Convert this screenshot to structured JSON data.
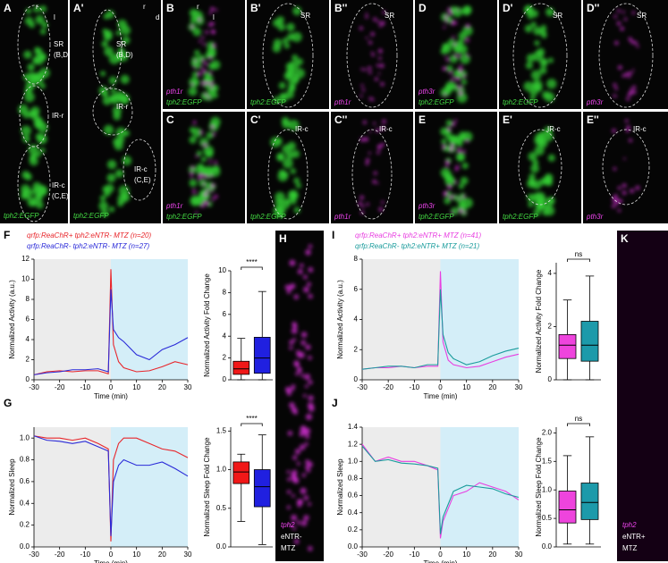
{
  "images": [
    {
      "label": "A",
      "texts": [
        "r",
        "l",
        "SR",
        "(B,D)",
        "IR-r",
        "IR-c",
        "(C,E)",
        "tph2:EGFP"
      ]
    },
    {
      "label": "A'",
      "texts": [
        "r",
        "d",
        "SR",
        "(B,D)",
        "IR-r",
        "IR-c",
        "(C,E)",
        "tph2:EGFP"
      ]
    },
    {
      "label": "B",
      "texts": [
        "r",
        "l",
        "pth1r",
        "tph2:EGFP"
      ]
    },
    {
      "label": "B'",
      "texts": [
        "SR",
        "tph2:EGFP"
      ]
    },
    {
      "label": "B''",
      "texts": [
        "SR",
        "pth1r"
      ]
    },
    {
      "label": "D",
      "texts": [
        "pth3r",
        "tph2:EGFP"
      ]
    },
    {
      "label": "D'",
      "texts": [
        "SR",
        "tph2:EGFP"
      ]
    },
    {
      "label": "D''",
      "texts": [
        "SR",
        "pth3r"
      ]
    },
    {
      "label": "C",
      "texts": [
        "pth1r",
        "tph2:EGFP"
      ]
    },
    {
      "label": "C'",
      "texts": [
        "IR-c",
        "tph2:EGFP"
      ]
    },
    {
      "label": "C''",
      "texts": [
        "IR-c",
        "pth1r"
      ]
    },
    {
      "label": "E",
      "texts": [
        "pth3r",
        "tph2:EGFP"
      ]
    },
    {
      "label": "E'",
      "texts": [
        "IR-c",
        "tph2:EGFP"
      ]
    },
    {
      "label": "E''",
      "texts": [
        "IR-c",
        "pth3r"
      ]
    },
    {
      "label": "H",
      "texts": [
        "tph2",
        "eNTR-",
        "MTZ"
      ]
    },
    {
      "label": "K",
      "texts": [
        "tph2",
        "eNTR+",
        "MTZ"
      ]
    }
  ],
  "chart_data": [
    {
      "type": "line",
      "label": "F",
      "ylabel": "Normalized Activity (a.u.)",
      "xlabel": "Time (min)",
      "x": [
        -30,
        -25,
        -20,
        -15,
        -10,
        -5,
        -1,
        0,
        1,
        3,
        5,
        10,
        15,
        20,
        25,
        30
      ],
      "series": [
        {
          "name": "qrfp:ReaChR+ tph2:eNTR- MTZ (n=20)",
          "color": "#e8262b",
          "values": [
            0.5,
            0.8,
            0.9,
            0.8,
            0.9,
            0.9,
            0.6,
            11,
            3.5,
            1.8,
            1.2,
            0.8,
            0.9,
            1.3,
            1.8,
            1.5
          ]
        },
        {
          "name": "qrfp:ReaChR- tph2:eNTR- MTZ (n=27)",
          "color": "#2a2ad8",
          "values": [
            0.5,
            0.7,
            0.8,
            1.0,
            1.0,
            1.1,
            0.8,
            9,
            5,
            4.2,
            3.8,
            2.5,
            2.0,
            3.0,
            3.5,
            4.2
          ]
        }
      ],
      "xlim": [
        -30,
        30
      ],
      "xticks": [
        -30,
        -20,
        -10,
        0,
        10,
        20,
        30
      ],
      "ylim": [
        0,
        12
      ],
      "yticks": [
        0,
        2,
        4,
        6,
        8,
        10,
        12
      ]
    },
    {
      "type": "box",
      "ylabel": "Normalized Activity Fold Change",
      "annotation": "****",
      "boxes": [
        {
          "color": "#f01818",
          "min": 0,
          "q1": 0.5,
          "median": 1.0,
          "q3": 1.7,
          "max": 3.8
        },
        {
          "color": "#2020e0",
          "min": 0,
          "q1": 0.6,
          "median": 2.0,
          "q3": 3.9,
          "max": 8.1
        }
      ],
      "ylim": [
        0,
        10
      ],
      "yticks": [
        0,
        2,
        4,
        6,
        8,
        10
      ]
    },
    {
      "type": "line",
      "label": "G",
      "ylabel": "Normalized Sleep",
      "xlabel": "Time (min)",
      "x": [
        -30,
        -25,
        -20,
        -15,
        -10,
        -5,
        -1,
        0,
        1,
        3,
        5,
        10,
        15,
        20,
        25,
        30
      ],
      "series": [
        {
          "color": "#e8262b",
          "values": [
            1.02,
            1.0,
            1.0,
            0.98,
            1.0,
            0.95,
            0.9,
            0.05,
            0.8,
            0.95,
            1.0,
            1.0,
            0.95,
            0.9,
            0.88,
            0.82
          ]
        },
        {
          "color": "#2a2ad8",
          "values": [
            1.02,
            0.98,
            0.97,
            0.95,
            0.97,
            0.92,
            0.88,
            0.1,
            0.6,
            0.75,
            0.8,
            0.75,
            0.75,
            0.78,
            0.72,
            0.65
          ]
        }
      ],
      "xlim": [
        -30,
        30
      ],
      "xticks": [
        -30,
        -20,
        -10,
        0,
        10,
        20,
        30
      ],
      "ylim": [
        0,
        1.1
      ],
      "yticks": [
        {
          "value": 0,
          "label": "0.0"
        },
        0.2,
        0.4,
        0.6,
        0.8,
        {
          "value": 1,
          "label": "1.0"
        }
      ]
    },
    {
      "type": "box",
      "ylabel": "Normalized Sleep Fold Change",
      "annotation": "****",
      "boxes": [
        {
          "color": "#f01818",
          "min": 0.33,
          "q1": 0.82,
          "median": 0.97,
          "q3": 1.1,
          "max": 1.2
        },
        {
          "color": "#2020e0",
          "min": 0.03,
          "q1": 0.52,
          "median": 0.78,
          "q3": 1.0,
          "max": 1.45
        }
      ],
      "ylim": [
        0,
        1.55
      ],
      "yticks": [
        {
          "value": 0,
          "label": "0.0"
        },
        0.5,
        {
          "value": 1,
          "label": "1.0"
        },
        1.5
      ]
    },
    {
      "type": "line",
      "label": "I",
      "ylabel": "Normalized Activity (a.u.)",
      "xlabel": "Time (min)",
      "x": [
        -30,
        -25,
        -20,
        -15,
        -10,
        -5,
        -1,
        0,
        1,
        3,
        5,
        10,
        15,
        20,
        25,
        30
      ],
      "series": [
        {
          "name": "qrfp:ReaChR+ tph2:eNTR+ MTZ (n=41)",
          "color": "#e83ee0",
          "values": [
            0.7,
            0.8,
            0.8,
            0.9,
            0.8,
            0.9,
            0.9,
            7.2,
            2.5,
            1.3,
            1.0,
            0.8,
            0.9,
            1.2,
            1.5,
            1.7
          ]
        },
        {
          "name": "qrfp:ReaChR- tph2:eNTR+ MTZ (n=21)",
          "color": "#1a9c9c",
          "values": [
            0.7,
            0.8,
            0.9,
            0.9,
            0.8,
            1.0,
            1.0,
            6.0,
            3.0,
            1.8,
            1.4,
            1.0,
            1.2,
            1.6,
            1.9,
            2.1
          ]
        }
      ],
      "xlim": [
        -30,
        30
      ],
      "xticks": [
        -30,
        -20,
        -10,
        0,
        10,
        20,
        30
      ],
      "ylim": [
        0,
        8
      ],
      "yticks": [
        0,
        2,
        4,
        6,
        8
      ]
    },
    {
      "type": "box",
      "ylabel": "Normalized Activity Fold Change",
      "annotation": "ns",
      "boxes": [
        {
          "color": "#ee44dd",
          "min": 0,
          "q1": 0.8,
          "median": 1.3,
          "q3": 1.7,
          "max": 3.0
        },
        {
          "color": "#1d9aaa",
          "min": 0,
          "q1": 0.7,
          "median": 1.3,
          "q3": 2.2,
          "max": 3.9
        }
      ],
      "ylim": [
        0,
        4.4
      ],
      "yticks": [
        0,
        2,
        4
      ]
    },
    {
      "type": "line",
      "label": "J",
      "ylabel": "Normalized Sleep",
      "xlabel": "Time (min)",
      "x": [
        -30,
        -25,
        -20,
        -15,
        -10,
        -5,
        -1,
        0,
        1,
        3,
        5,
        10,
        15,
        20,
        25,
        30
      ],
      "series": [
        {
          "color": "#e83ee0",
          "values": [
            1.2,
            1.0,
            1.05,
            1.0,
            1.0,
            0.95,
            0.9,
            0.1,
            0.3,
            0.45,
            0.6,
            0.65,
            0.75,
            0.7,
            0.65,
            0.55
          ]
        },
        {
          "color": "#1a9c9c",
          "values": [
            1.18,
            1.0,
            1.02,
            0.98,
            0.97,
            0.95,
            0.92,
            0.15,
            0.35,
            0.5,
            0.65,
            0.72,
            0.7,
            0.68,
            0.62,
            0.58
          ]
        }
      ],
      "xlim": [
        -30,
        30
      ],
      "xticks": [
        -30,
        -20,
        -10,
        0,
        10,
        20,
        30
      ],
      "ylim": [
        0,
        1.4
      ],
      "yticks": [
        {
          "value": 0,
          "label": "0.0"
        },
        0.2,
        0.4,
        0.6,
        0.8,
        {
          "value": 1,
          "label": "1.0"
        },
        1.2,
        1.4
      ]
    },
    {
      "type": "box",
      "ylabel": "Normalized Sleep Fold Change",
      "annotation": "ns",
      "boxes": [
        {
          "color": "#ee44dd",
          "min": 0.05,
          "q1": 0.42,
          "median": 0.65,
          "q3": 0.98,
          "max": 1.6
        },
        {
          "color": "#1d9aaa",
          "min": 0.05,
          "q1": 0.48,
          "median": 0.78,
          "q3": 1.12,
          "max": 1.93
        }
      ],
      "ylim": [
        0,
        2.1
      ],
      "yticks": [
        {
          "value": 0,
          "label": "0.0"
        },
        0.5,
        {
          "value": 1,
          "label": "1.0"
        },
        1.5,
        {
          "value": 2,
          "label": "2.0"
        }
      ]
    }
  ]
}
